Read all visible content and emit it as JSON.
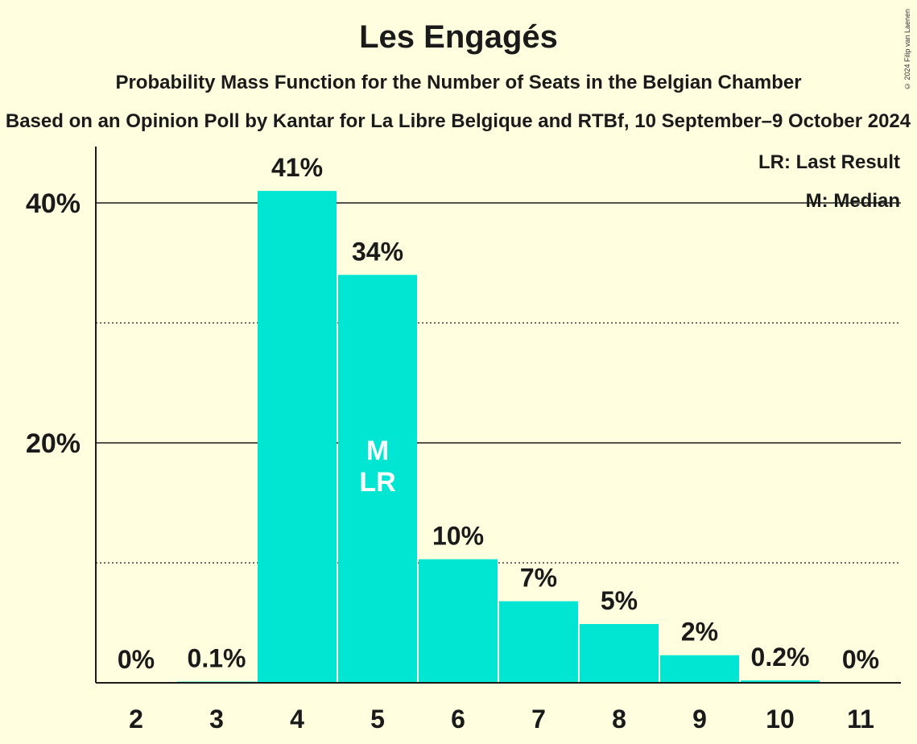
{
  "title": "Les Engagés",
  "subtitle": "Probability Mass Function for the Number of Seats in the Belgian Chamber",
  "source": "Based on an Opinion Poll by Kantar for La Libre Belgique and RTBf, 10 September–9 October 2024",
  "copyright": "© 2024 Filip van Laenen",
  "legend": {
    "last_result": "LR: Last Result",
    "median": "M: Median"
  },
  "colors": {
    "bar": "#00e6d2",
    "background": "#ffffe0",
    "text": "#1a1a1a"
  },
  "chart_data": {
    "type": "bar",
    "title": "Les Engagés",
    "subtitle": "Probability Mass Function for the Number of Seats in the Belgian Chamber",
    "xlabel": "",
    "ylabel": "",
    "categories": [
      "2",
      "3",
      "4",
      "5",
      "6",
      "7",
      "8",
      "9",
      "10",
      "11"
    ],
    "values": [
      0,
      0.1,
      41,
      34,
      10.3,
      6.8,
      4.9,
      2.3,
      0.2,
      0
    ],
    "data_labels": [
      "0%",
      "0.1%",
      "41%",
      "34%",
      "10%",
      "7%",
      "5%",
      "2%",
      "0.2%",
      "0%"
    ],
    "ylim": [
      0,
      45
    ],
    "yticks": [
      {
        "value": 20,
        "label": "20%"
      },
      {
        "value": 40,
        "label": "40%"
      }
    ],
    "minor_gridlines": [
      10,
      30
    ],
    "median_category": "5",
    "last_result_category": "5",
    "median_marker": "M",
    "last_result_marker": "LR",
    "legend_position": "top-right",
    "grid": true
  }
}
